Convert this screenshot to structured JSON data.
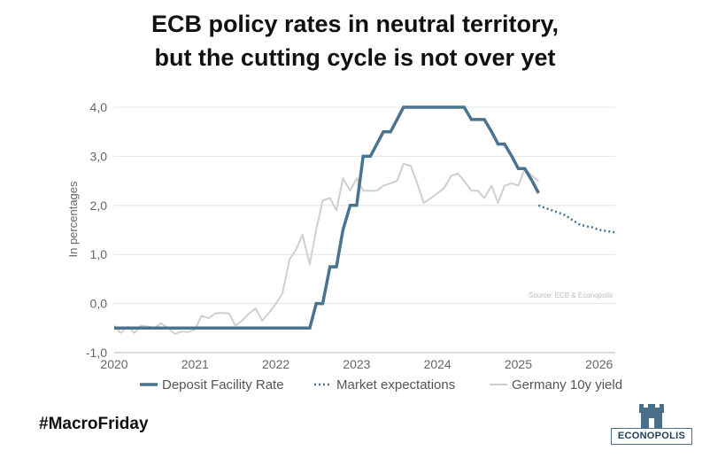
{
  "title_line1": "ECB policy rates in neutral territory,",
  "title_line2": "but the cutting cycle is not over yet",
  "hashtag": "#MacroFriday",
  "logo_text": "ECONOPOLIS",
  "logo_icon": "castle-tower-icon",
  "colors": {
    "deposit": "#4a7390",
    "expectations": "#4a7390",
    "yield": "#cfcfcf",
    "grid": "#e4e4e4",
    "axis_text": "#666666",
    "logo": "#4a6f8a"
  },
  "chart_data": {
    "type": "line",
    "ylabel": "In percentages",
    "xlim": [
      2020,
      2026.2
    ],
    "ylim": [
      -1.0,
      4.0
    ],
    "xticks": [
      2020,
      2021,
      2022,
      2023,
      2024,
      2025,
      2026
    ],
    "xtick_labels": [
      "2020",
      "2021",
      "2022",
      "2023",
      "2024",
      "2025",
      "2026"
    ],
    "yticks": [
      -1.0,
      0.0,
      1.0,
      2.0,
      3.0,
      4.0
    ],
    "ytick_labels": [
      "-1,0",
      "0,0",
      "1,0",
      "2,0",
      "3,0",
      "4,0"
    ],
    "grid": true,
    "legend_position": "bottom",
    "source_note": "Source: ECB & Econopolis",
    "series": [
      {
        "name": "Deposit Facility Rate",
        "style": "solid",
        "x": [
          2020.0,
          2022.42,
          2022.5,
          2022.58,
          2022.67,
          2022.75,
          2022.83,
          2022.92,
          2023.0,
          2023.08,
          2023.17,
          2023.25,
          2023.33,
          2023.42,
          2023.5,
          2023.58,
          2023.67,
          2024.33,
          2024.42,
          2024.58,
          2024.67,
          2024.75,
          2024.83,
          2024.92,
          2025.0,
          2025.08,
          2025.17,
          2025.25
        ],
        "y": [
          -0.5,
          -0.5,
          0.0,
          0.0,
          0.75,
          0.75,
          1.5,
          2.0,
          2.0,
          3.0,
          3.0,
          3.25,
          3.5,
          3.5,
          3.75,
          4.0,
          4.0,
          4.0,
          3.75,
          3.75,
          3.5,
          3.25,
          3.25,
          3.0,
          2.75,
          2.75,
          2.5,
          2.25
        ]
      },
      {
        "name": "Market expectations",
        "style": "dotted",
        "x": [
          2025.25,
          2025.33,
          2025.5,
          2025.58,
          2025.67,
          2025.75,
          2025.83,
          2025.92,
          2026.0,
          2026.08,
          2026.2
        ],
        "y": [
          2.0,
          1.95,
          1.85,
          1.8,
          1.7,
          1.62,
          1.58,
          1.55,
          1.5,
          1.48,
          1.45
        ]
      },
      {
        "name": "Germany 10y yield",
        "style": "solid",
        "x": [
          2020.0,
          2020.08,
          2020.17,
          2020.25,
          2020.33,
          2020.42,
          2020.5,
          2020.58,
          2020.67,
          2020.75,
          2020.83,
          2020.92,
          2021.0,
          2021.08,
          2021.17,
          2021.25,
          2021.33,
          2021.42,
          2021.5,
          2021.58,
          2021.67,
          2021.75,
          2021.83,
          2021.92,
          2022.0,
          2022.08,
          2022.17,
          2022.25,
          2022.33,
          2022.42,
          2022.5,
          2022.58,
          2022.67,
          2022.75,
          2022.83,
          2022.92,
          2023.0,
          2023.08,
          2023.17,
          2023.25,
          2023.33,
          2023.42,
          2023.5,
          2023.58,
          2023.67,
          2023.75,
          2023.83,
          2023.92,
          2024.0,
          2024.08,
          2024.17,
          2024.25,
          2024.33,
          2024.42,
          2024.5,
          2024.58,
          2024.67,
          2024.75,
          2024.83,
          2024.92,
          2025.0,
          2025.08,
          2025.17,
          2025.25
        ],
        "y": [
          -0.45,
          -0.6,
          -0.47,
          -0.6,
          -0.45,
          -0.47,
          -0.5,
          -0.4,
          -0.5,
          -0.62,
          -0.57,
          -0.58,
          -0.53,
          -0.25,
          -0.3,
          -0.2,
          -0.19,
          -0.2,
          -0.45,
          -0.35,
          -0.2,
          -0.1,
          -0.35,
          -0.18,
          0.0,
          0.2,
          0.9,
          1.1,
          1.4,
          0.8,
          1.5,
          2.1,
          2.15,
          1.9,
          2.55,
          2.3,
          2.55,
          2.3,
          2.3,
          2.3,
          2.4,
          2.45,
          2.5,
          2.85,
          2.8,
          2.45,
          2.05,
          2.15,
          2.25,
          2.35,
          2.6,
          2.65,
          2.5,
          2.3,
          2.3,
          2.15,
          2.4,
          2.05,
          2.4,
          2.45,
          2.4,
          2.75,
          2.6,
          2.5
        ]
      }
    ]
  }
}
